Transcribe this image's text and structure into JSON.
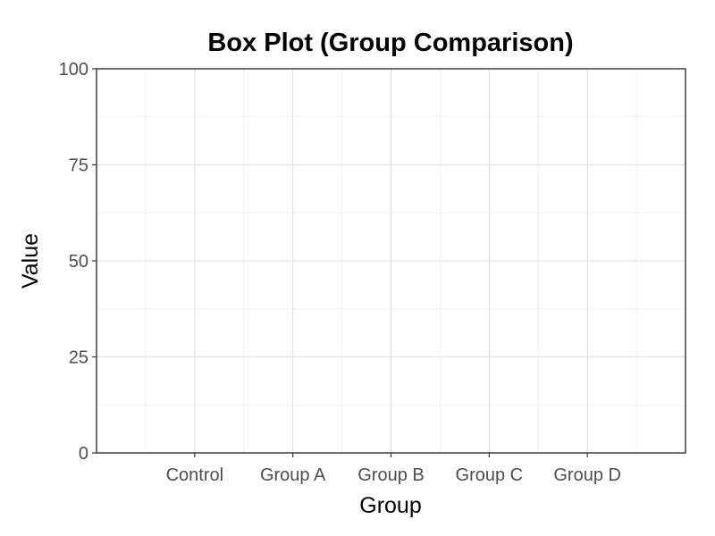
{
  "chart_data": {
    "type": "box",
    "title": "Box Plot (Group Comparison)",
    "xlabel": "Group",
    "ylabel": "Value",
    "categories": [
      "Control",
      "Group A",
      "Group B",
      "Group C",
      "Group D"
    ],
    "ylim": [
      0,
      100
    ],
    "yticks": [
      0,
      25,
      50,
      75,
      100
    ],
    "grid": true,
    "legend": "none",
    "series": []
  }
}
